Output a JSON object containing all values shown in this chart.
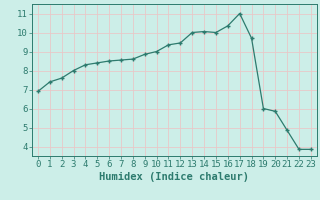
{
  "xlabel": "Humidex (Indice chaleur)",
  "ylabel": "",
  "x": [
    0,
    1,
    2,
    3,
    4,
    5,
    6,
    7,
    8,
    9,
    10,
    11,
    12,
    13,
    14,
    15,
    16,
    17,
    18,
    19,
    20,
    21,
    22,
    23
  ],
  "y": [
    6.9,
    7.4,
    7.6,
    8.0,
    8.3,
    8.4,
    8.5,
    8.55,
    8.6,
    8.85,
    9.0,
    9.35,
    9.45,
    10.0,
    10.05,
    10.0,
    10.35,
    11.0,
    9.7,
    6.0,
    5.85,
    4.85,
    3.85,
    3.85
  ],
  "line_color": "#2d7b6e",
  "bg_color": "#cceee8",
  "grid_color": "#e8c8c8",
  "ylim": [
    3.5,
    11.5
  ],
  "xlim": [
    -0.5,
    23.5
  ],
  "yticks": [
    4,
    5,
    6,
    7,
    8,
    9,
    10,
    11
  ],
  "xticks": [
    0,
    1,
    2,
    3,
    4,
    5,
    6,
    7,
    8,
    9,
    10,
    11,
    12,
    13,
    14,
    15,
    16,
    17,
    18,
    19,
    20,
    21,
    22,
    23
  ],
  "tick_fontsize": 6.5,
  "label_fontsize": 7.5
}
